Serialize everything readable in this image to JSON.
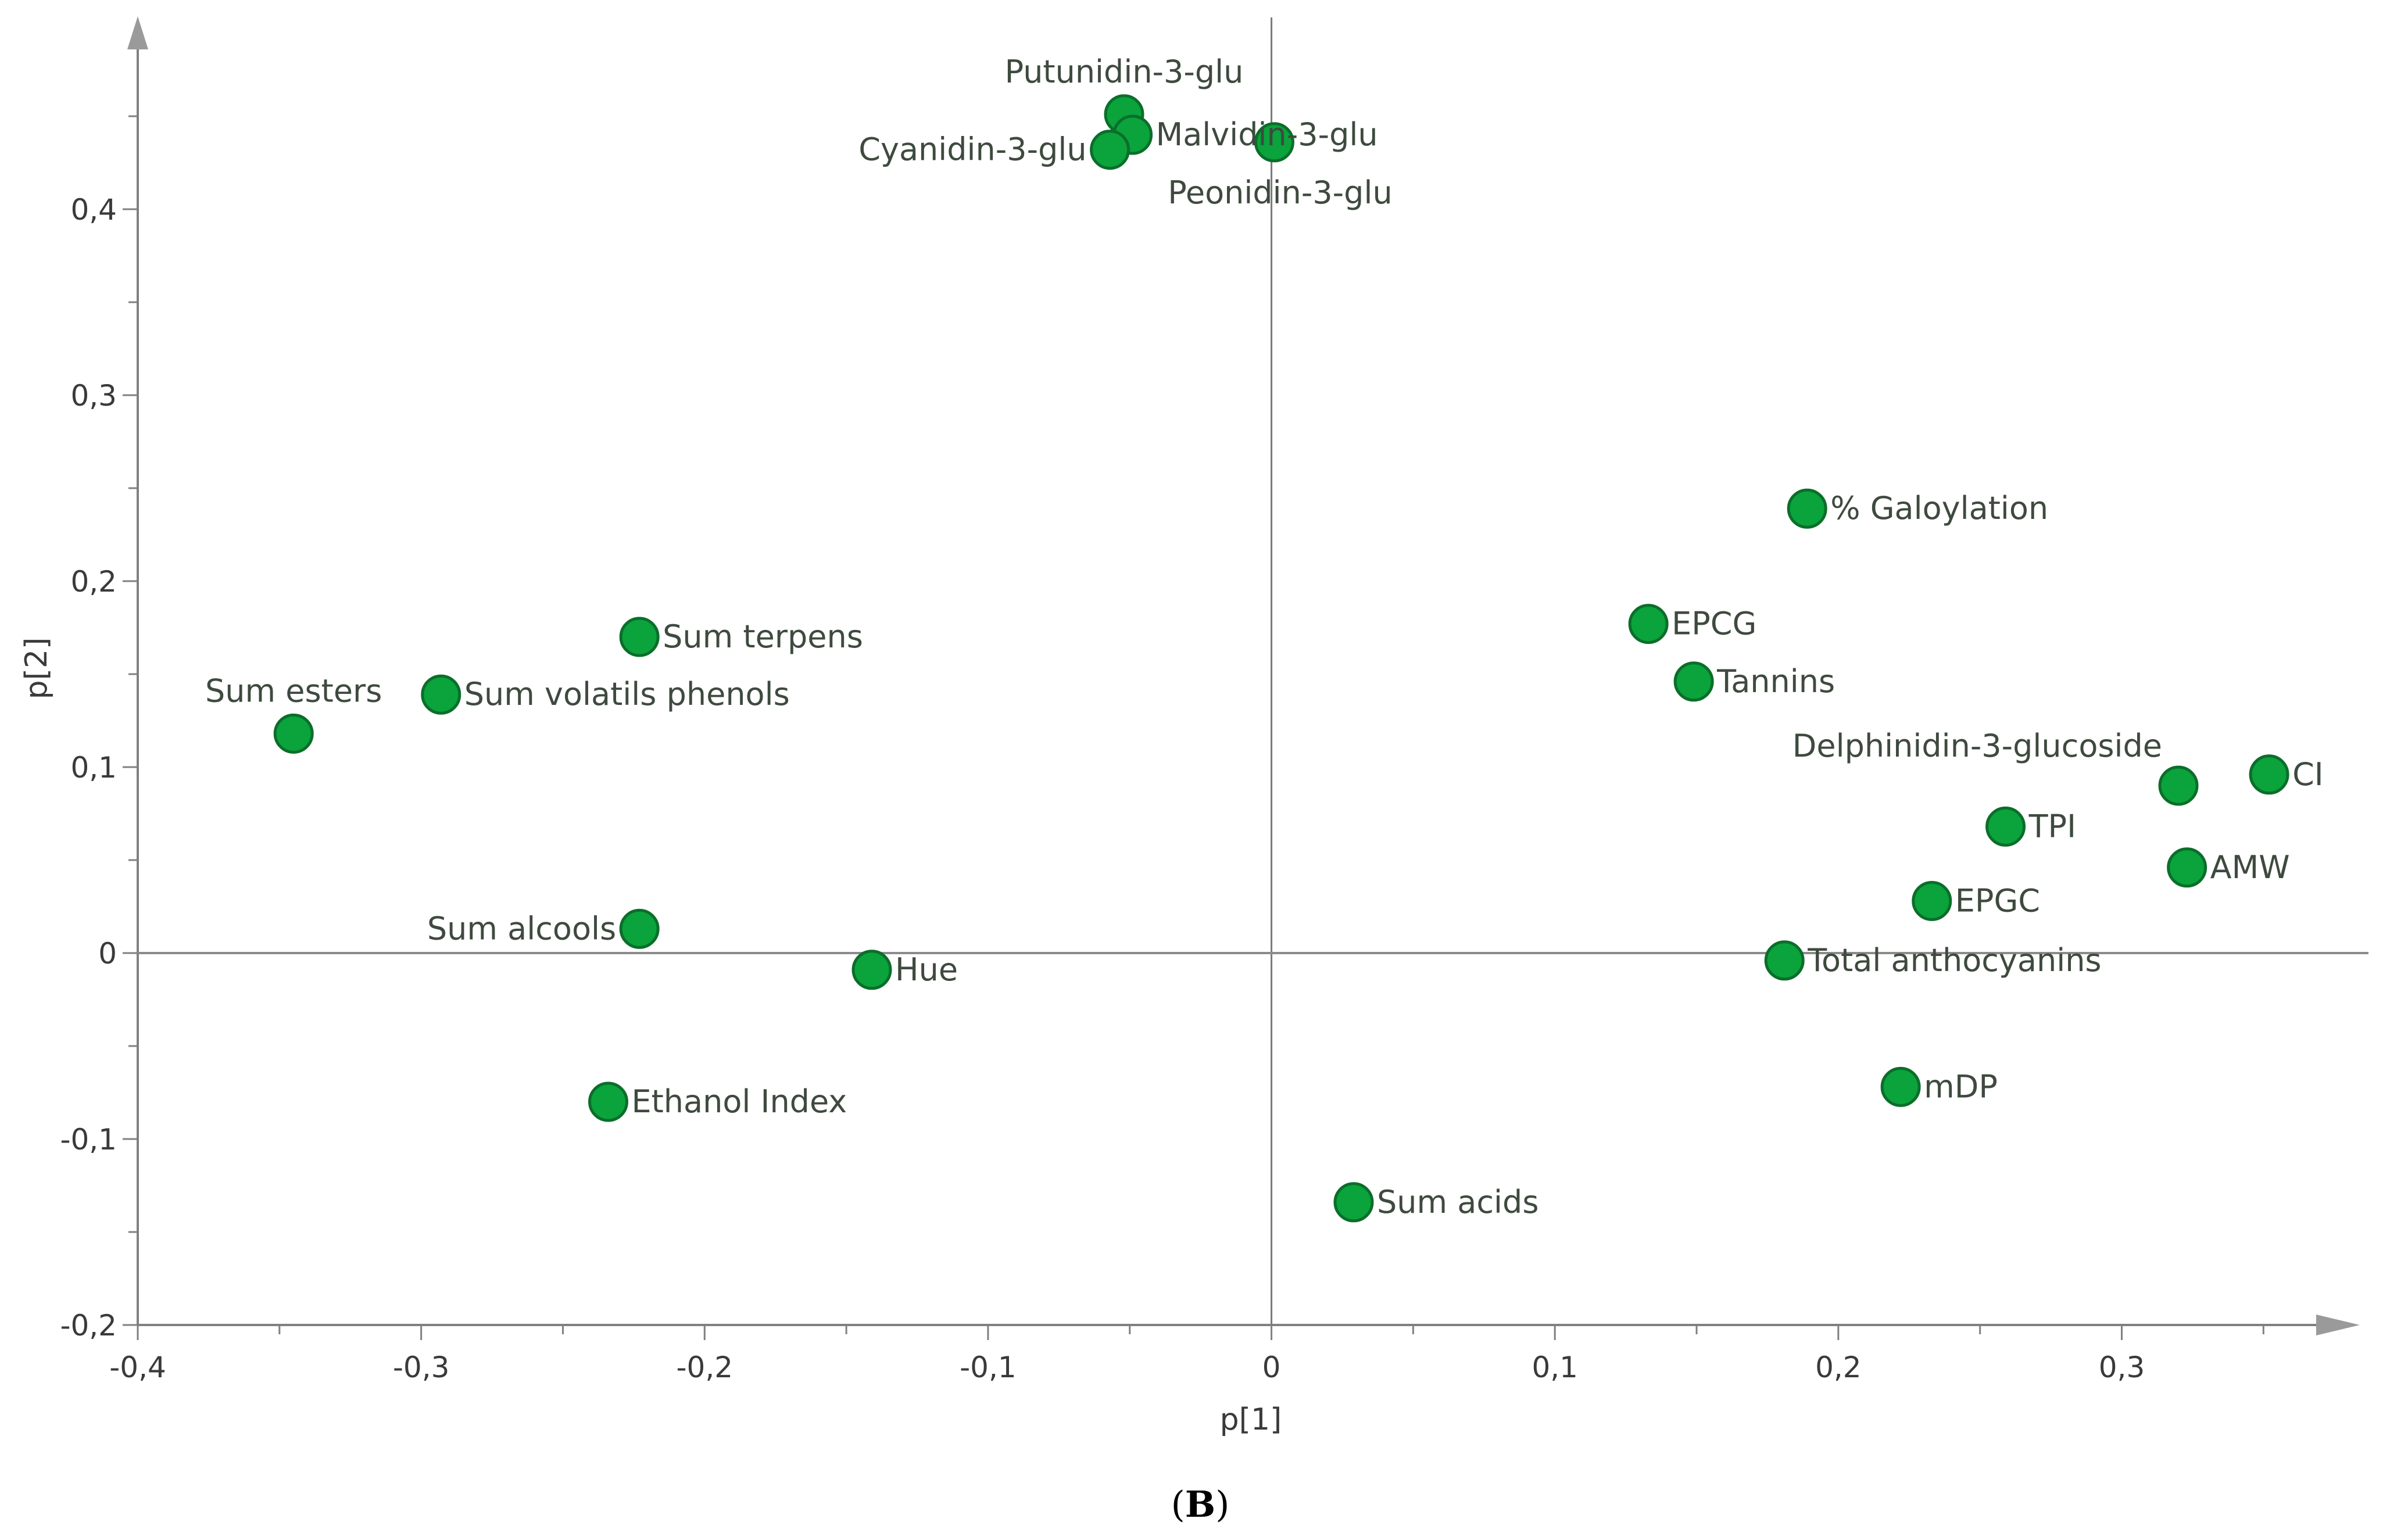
{
  "chart_data": {
    "type": "scatter",
    "title": "",
    "xlabel": "p[1]",
    "ylabel": "p[2]",
    "xlim": [
      -0.4,
      0.385
    ],
    "ylim": [
      -0.2,
      0.5
    ],
    "x_ticks": [
      -0.4,
      -0.3,
      -0.2,
      -0.1,
      0,
      0.1,
      0.2,
      0.3
    ],
    "y_ticks": [
      -0.2,
      -0.1,
      0,
      0.1,
      0.2,
      0.3,
      0.4
    ],
    "x_tick_labels": [
      "-0,4",
      "-0,3",
      "-0,2",
      "-0,1",
      "0",
      "0,1",
      "0,2",
      "0,3"
    ],
    "y_tick_labels": [
      "-0,2",
      "-0,1",
      "0",
      "0,1",
      "0,2",
      "0,3",
      "0,4"
    ],
    "point_color": "#0aa33c",
    "point_edge_color": "#0b6e2a",
    "points": [
      {
        "label": "Putunidin-3-glu",
        "x": -0.052,
        "y": 0.451,
        "anchor": "above"
      },
      {
        "label": "Malvidin-3-glu",
        "x": -0.049,
        "y": 0.44,
        "anchor": "right"
      },
      {
        "label": "Cyanidin-3-glu",
        "x": -0.057,
        "y": 0.432,
        "anchor": "left"
      },
      {
        "label": "Peonidin-3-glu",
        "x": 0.001,
        "y": 0.436,
        "anchor": "below"
      },
      {
        "label": "% Galoylation",
        "x": 0.189,
        "y": 0.239,
        "anchor": "right"
      },
      {
        "label": "EPCG",
        "x": 0.133,
        "y": 0.177,
        "anchor": "right"
      },
      {
        "label": "Tannins",
        "x": 0.149,
        "y": 0.146,
        "anchor": "right"
      },
      {
        "label": "Delphinidin-3-glucoside",
        "x": 0.32,
        "y": 0.09,
        "anchor": "above-left"
      },
      {
        "label": "CI",
        "x": 0.352,
        "y": 0.096,
        "anchor": "right"
      },
      {
        "label": "TPI",
        "x": 0.259,
        "y": 0.068,
        "anchor": "right"
      },
      {
        "label": "AMW",
        "x": 0.323,
        "y": 0.046,
        "anchor": "right"
      },
      {
        "label": "EPGC",
        "x": 0.233,
        "y": 0.028,
        "anchor": "right"
      },
      {
        "label": "Total anthocyanins",
        "x": 0.181,
        "y": -0.004,
        "anchor": "right"
      },
      {
        "label": "mDP",
        "x": 0.222,
        "y": -0.072,
        "anchor": "right"
      },
      {
        "label": "Sum acids",
        "x": 0.029,
        "y": -0.134,
        "anchor": "right"
      },
      {
        "label": "Sum terpens",
        "x": -0.223,
        "y": 0.17,
        "anchor": "right"
      },
      {
        "label": "Sum volatils phenols",
        "x": -0.293,
        "y": 0.139,
        "anchor": "right"
      },
      {
        "label": "Sum esters",
        "x": -0.345,
        "y": 0.118,
        "anchor": "above"
      },
      {
        "label": "Sum alcools",
        "x": -0.223,
        "y": 0.013,
        "anchor": "left"
      },
      {
        "label": "Hue",
        "x": -0.141,
        "y": -0.009,
        "anchor": "right"
      },
      {
        "label": "Ethanol Index",
        "x": -0.234,
        "y": -0.08,
        "anchor": "right"
      }
    ]
  },
  "caption": {
    "open": "(",
    "letter": "B",
    "close": ")"
  }
}
